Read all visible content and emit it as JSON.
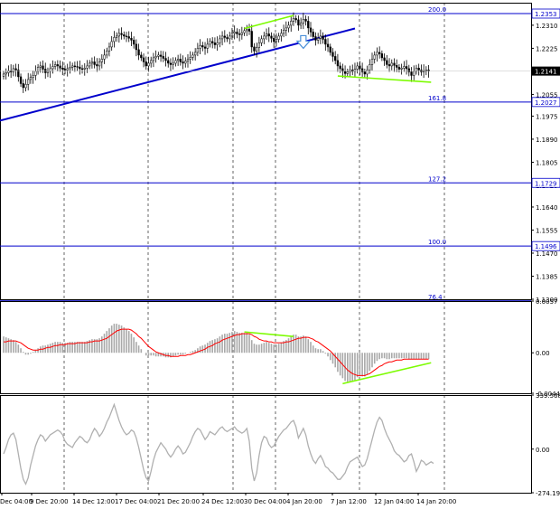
{
  "colors": {
    "background": "#ffffff",
    "frame": "#000000",
    "candle": "#000000",
    "fibo_line": "#0000cc",
    "trend_line": "#0000cc",
    "divergence": "#7cfc00",
    "macd_hist": "#a9a9a9",
    "macd_signal": "#ff0000",
    "cci_line": "#b0b0b0",
    "arrow": "#4a90d9",
    "price_label_bg": "#ffffff",
    "current_price_bg": "#000000"
  },
  "chart_data": [
    {
      "type": "candlestick",
      "panel": "price",
      "ylim": [
        1.13,
        1.2393
      ],
      "price_axis_ticks": [
        "1.2310",
        "1.2225",
        "1.2055",
        "1.1975",
        "1.1890",
        "1.1805",
        "1.1720",
        "1.1640",
        "1.1555",
        "1.1470",
        "1.1385",
        "1.1300"
      ],
      "current_price": "1.2141",
      "fibo_levels": [
        {
          "level": "200.0",
          "price": 1.2353,
          "price_label": "1.2353"
        },
        {
          "level": "161.8",
          "price": 1.2027,
          "price_label": "1.2027"
        },
        {
          "level": "127.2",
          "price": 1.1729,
          "price_label": "1.1729"
        },
        {
          "level": "100.0",
          "price": 1.1496,
          "price_label": "1.1496"
        },
        {
          "level": "76.4",
          "price": 1.1294,
          "price_label": ""
        }
      ],
      "trend_line": {
        "from": [
          0,
          1.1965
        ],
        "to": [
          143,
          1.2298
        ]
      },
      "divergence_lines": [
        {
          "from": [
            98,
            1.2298
          ],
          "to": [
            118,
            1.2346
          ]
        },
        {
          "from": [
            136,
            1.2123
          ],
          "to": [
            174,
            1.21
          ]
        }
      ],
      "arrow": {
        "direction": "down",
        "at": [
          122,
          1.2245
        ]
      },
      "close_values": [
        1.213,
        1.2135,
        1.2142,
        1.2138,
        1.215,
        1.2145,
        1.212,
        1.2095,
        1.208,
        1.2092,
        1.211,
        1.2118,
        1.2125,
        1.214,
        1.2155,
        1.216,
        1.2148,
        1.2135,
        1.214,
        1.215,
        1.2158,
        1.2165,
        1.216,
        1.2152,
        1.2148,
        1.2145,
        1.215,
        1.2155,
        1.216,
        1.2158,
        1.2156,
        1.215,
        1.2148,
        1.2152,
        1.216,
        1.217,
        1.2175,
        1.2165,
        1.216,
        1.2175,
        1.2185,
        1.22,
        1.2215,
        1.223,
        1.225,
        1.2265,
        1.227,
        1.228,
        1.2275,
        1.227,
        1.2268,
        1.2262,
        1.2255,
        1.224,
        1.222,
        1.22,
        1.219,
        1.2175,
        1.216,
        1.217,
        1.218,
        1.219,
        1.2195,
        1.22,
        1.2195,
        1.2188,
        1.218,
        1.217,
        1.2165,
        1.217,
        1.218,
        1.2185,
        1.2175,
        1.217,
        1.2178,
        1.2185,
        1.2192,
        1.22,
        1.221,
        1.2225,
        1.2235,
        1.223,
        1.2225,
        1.224,
        1.225,
        1.2245,
        1.2238,
        1.2245,
        1.226,
        1.227,
        1.2265,
        1.226,
        1.227,
        1.228,
        1.2285,
        1.2278,
        1.2275,
        1.2282,
        1.229,
        1.2295,
        1.2288,
        1.223,
        1.2215,
        1.2228,
        1.2245,
        1.226,
        1.227,
        1.2278,
        1.227,
        1.2262,
        1.225,
        1.2258,
        1.227,
        1.228,
        1.2292,
        1.23,
        1.231,
        1.2325,
        1.2335,
        1.233,
        1.231,
        1.2318,
        1.2332,
        1.2325,
        1.23,
        1.2285,
        1.2268,
        1.2255,
        1.2262,
        1.227,
        1.2258,
        1.224,
        1.223,
        1.221,
        1.2195,
        1.218,
        1.216,
        1.215,
        1.214,
        1.2132,
        1.2138,
        1.2145,
        1.214,
        1.2148,
        1.216,
        1.215,
        1.2138,
        1.213,
        1.2145,
        1.2165,
        1.2185,
        1.22,
        1.221,
        1.2205,
        1.219,
        1.218,
        1.2165,
        1.216,
        1.217,
        1.2162,
        1.2155,
        1.2148,
        1.2152,
        1.2158,
        1.215,
        1.2138,
        1.2125,
        1.214,
        1.2152,
        1.2145,
        1.2138,
        1.2142,
        1.2145,
        1.2141
      ],
      "x_tick_labels": [
        "Dec 04:00",
        "9 Dec 20:00",
        "14 Dec 12:00",
        "17 Dec 04:00",
        "21 Dec 20:00",
        "24 Dec 12:00",
        "30 Dec 04:00",
        "4 Jan 20:00",
        "7 Jan 12:00",
        "12 Jan 04:00",
        "14 Jan 20:00"
      ]
    },
    {
      "type": "bar+line",
      "panel": "macd",
      "ylim": [
        -0.00446,
        0.0057
      ],
      "axis_ticks": [
        "0.0057",
        "0.00",
        "-0.00446"
      ],
      "divergence_lines": [
        {
          "from": [
            98,
            0.0023
          ],
          "to": [
            118,
            0.0018
          ]
        },
        {
          "from": [
            138,
            -0.0034
          ],
          "to": [
            174,
            -0.0011
          ]
        }
      ],
      "histogram": [
        0.0018,
        0.0017,
        0.0016,
        0.0015,
        0.0014,
        0.0012,
        0.0009,
        0.0005,
        0.0001,
        -0.0002,
        -0.0002,
        -0.0001,
        0.0001,
        0.0003,
        0.0005,
        0.0007,
        0.0008,
        0.0008,
        0.0009,
        0.001,
        0.0011,
        0.0012,
        0.0012,
        0.0012,
        0.0011,
        0.0011,
        0.0011,
        0.0012,
        0.0012,
        0.0012,
        0.0012,
        0.0012,
        0.0012,
        0.0012,
        0.0013,
        0.0014,
        0.0015,
        0.0015,
        0.0015,
        0.0016,
        0.0018,
        0.0021,
        0.0024,
        0.0027,
        0.003,
        0.0032,
        0.0032,
        0.0031,
        0.003,
        0.0028,
        0.0026,
        0.0024,
        0.0021,
        0.0017,
        0.0012,
        0.0008,
        0.0004,
        0.0,
        -0.0003,
        -0.0003,
        -0.0003,
        -0.0003,
        -0.0004,
        -0.0004,
        -0.0004,
        -0.0004,
        -0.0005,
        -0.0005,
        -0.0005,
        -0.0004,
        -0.0003,
        -0.0002,
        -0.0002,
        -0.0002,
        -0.0001,
        0.0,
        0.0001,
        0.0002,
        0.0003,
        0.0005,
        0.0007,
        0.0008,
        0.0009,
        0.0011,
        0.0013,
        0.0014,
        0.0015,
        0.0016,
        0.0018,
        0.002,
        0.0021,
        0.0021,
        0.0022,
        0.0023,
        0.0024,
        0.0023,
        0.0022,
        0.0022,
        0.0022,
        0.0022,
        0.002,
        0.0014,
        0.001,
        0.0009,
        0.0009,
        0.001,
        0.0011,
        0.0012,
        0.0011,
        0.001,
        0.0009,
        0.0009,
        0.001,
        0.0011,
        0.0013,
        0.0014,
        0.0016,
        0.0018,
        0.002,
        0.002,
        0.0018,
        0.0018,
        0.0019,
        0.0018,
        0.0015,
        0.0012,
        0.0008,
        0.0005,
        0.0004,
        0.0004,
        0.0002,
        -0.0001,
        -0.0004,
        -0.0008,
        -0.0012,
        -0.0016,
        -0.0021,
        -0.0025,
        -0.0028,
        -0.0031,
        -0.0032,
        -0.0032,
        -0.0031,
        -0.003,
        -0.0027,
        -0.0026,
        -0.0026,
        -0.0026,
        -0.0024,
        -0.002,
        -0.0016,
        -0.0012,
        -0.0009,
        -0.0007,
        -0.0006,
        -0.0006,
        -0.0007,
        -0.0007,
        -0.0006,
        -0.0006,
        -0.0006,
        -0.0006,
        -0.0006,
        -0.0006,
        -0.0006,
        -0.0007,
        -0.0007,
        -0.0007,
        -0.0007,
        -0.0007,
        -0.0007,
        -0.0007,
        -0.0007,
        -0.0007
      ],
      "signal": [
        0.0012,
        0.0012,
        0.0013,
        0.0013,
        0.0013,
        0.0013,
        0.0012,
        0.0011,
        0.0009,
        0.0007,
        0.0005,
        0.0004,
        0.0003,
        0.0003,
        0.0003,
        0.0004,
        0.0004,
        0.0005,
        0.0006,
        0.0006,
        0.0007,
        0.0008,
        0.0008,
        0.0009,
        0.0009,
        0.0009,
        0.001,
        0.001,
        0.001,
        0.001,
        0.0011,
        0.0011,
        0.0011,
        0.0011,
        0.0011,
        0.0012,
        0.0012,
        0.0013,
        0.0013,
        0.0013,
        0.0014,
        0.0015,
        0.0016,
        0.0018,
        0.002,
        0.0022,
        0.0024,
        0.0025,
        0.0026,
        0.0026,
        0.0026,
        0.0026,
        0.0025,
        0.0023,
        0.0021,
        0.0018,
        0.0016,
        0.0013,
        0.001,
        0.0007,
        0.0005,
        0.0003,
        0.0001,
        0.0,
        -0.0001,
        -0.0002,
        -0.0003,
        -0.0003,
        -0.0004,
        -0.0004,
        -0.0004,
        -0.0004,
        -0.0003,
        -0.0003,
        -0.0003,
        -0.0002,
        -0.0002,
        -0.0001,
        0.0,
        0.0001,
        0.0002,
        0.0003,
        0.0004,
        0.0006,
        0.0007,
        0.0008,
        0.001,
        0.0011,
        0.0012,
        0.0014,
        0.0015,
        0.0016,
        0.0017,
        0.0018,
        0.0019,
        0.002,
        0.002,
        0.0021,
        0.0021,
        0.0021,
        0.0021,
        0.002,
        0.0018,
        0.0017,
        0.0015,
        0.0014,
        0.0013,
        0.0013,
        0.0012,
        0.0012,
        0.0011,
        0.0011,
        0.0011,
        0.0011,
        0.0011,
        0.0012,
        0.0012,
        0.0013,
        0.0014,
        0.0015,
        0.0016,
        0.0016,
        0.0017,
        0.0017,
        0.0017,
        0.0016,
        0.0015,
        0.0013,
        0.0012,
        0.001,
        0.0008,
        0.0006,
        0.0004,
        0.0002,
        -0.0001,
        -0.0004,
        -0.0007,
        -0.001,
        -0.0013,
        -0.0016,
        -0.0019,
        -0.0021,
        -0.0023,
        -0.0024,
        -0.0025,
        -0.0025,
        -0.0025,
        -0.0025,
        -0.0024,
        -0.0023,
        -0.0021,
        -0.0019,
        -0.0017,
        -0.0015,
        -0.0014,
        -0.0012,
        -0.0011,
        -0.001,
        -0.001,
        -0.0009,
        -0.0008,
        -0.0008,
        -0.0008,
        -0.0007,
        -0.0007,
        -0.0007,
        -0.0007,
        -0.0007,
        -0.0007,
        -0.0007,
        -0.0007,
        -0.0007,
        -0.0007,
        -0.0007
      ]
    },
    {
      "type": "line",
      "panel": "cci",
      "ylim": [
        -274.194,
        339.568
      ],
      "axis_ticks": [
        "339.568",
        "0.00",
        "-274.194"
      ],
      "values": [
        -30,
        10,
        60,
        90,
        100,
        60,
        -30,
        -120,
        -190,
        -220,
        -180,
        -100,
        -40,
        20,
        60,
        90,
        80,
        50,
        70,
        90,
        100,
        110,
        120,
        110,
        90,
        50,
        30,
        20,
        10,
        40,
        60,
        80,
        70,
        50,
        40,
        60,
        100,
        130,
        110,
        80,
        100,
        130,
        170,
        200,
        240,
        280,
        230,
        180,
        140,
        110,
        90,
        100,
        120,
        110,
        70,
        10,
        -60,
        -130,
        -180,
        -200,
        -140,
        -70,
        -20,
        10,
        40,
        20,
        0,
        -30,
        -50,
        -30,
        0,
        20,
        0,
        -30,
        -20,
        10,
        40,
        80,
        110,
        130,
        120,
        90,
        60,
        80,
        110,
        100,
        90,
        110,
        130,
        140,
        120,
        110,
        120,
        130,
        140,
        120,
        110,
        100,
        110,
        130,
        50,
        -120,
        -200,
        -150,
        -40,
        40,
        80,
        70,
        30,
        10,
        20,
        50,
        80,
        100,
        120,
        130,
        150,
        170,
        180,
        140,
        70,
        100,
        130,
        90,
        20,
        -30,
        -70,
        -90,
        -60,
        -40,
        -70,
        -110,
        -120,
        -140,
        -150,
        -170,
        -190,
        -190,
        -170,
        -150,
        -110,
        -80,
        -70,
        -60,
        -50,
        -80,
        -110,
        -100,
        -60,
        0,
        60,
        120,
        170,
        200,
        180,
        130,
        90,
        60,
        30,
        -10,
        -30,
        -40,
        -60,
        -80,
        -70,
        -40,
        -30,
        -80,
        -140,
        -110,
        -70,
        -80,
        -100,
        -90,
        -80,
        -90
      ]
    }
  ]
}
